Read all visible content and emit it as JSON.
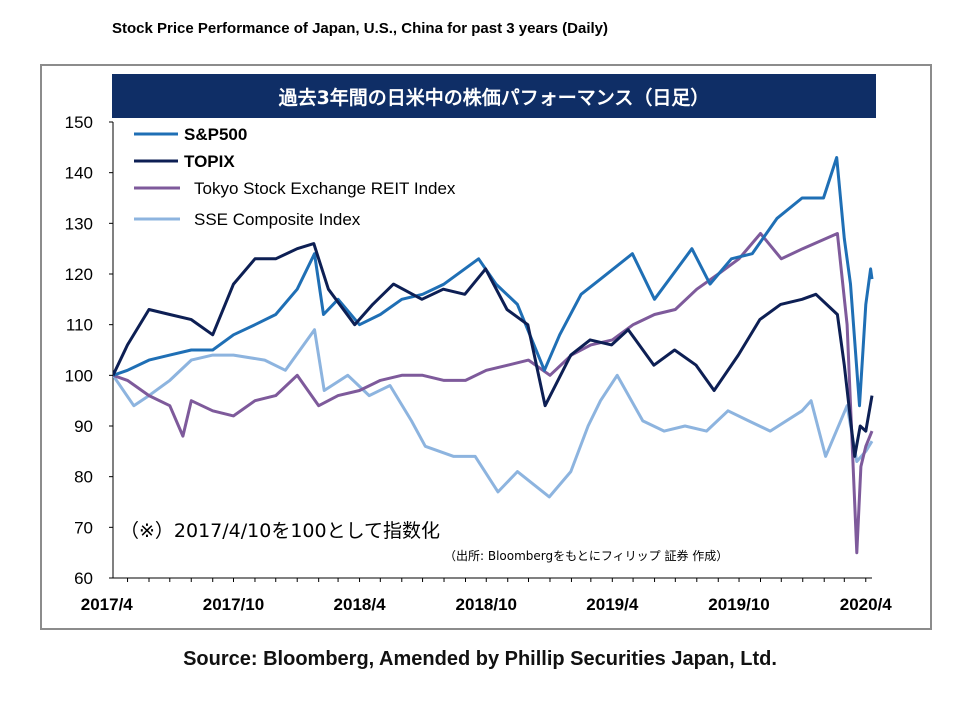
{
  "header": {
    "title": "Stock Price Performance of Japan, U.S., China for past 3 years (Daily)"
  },
  "footer": {
    "source": "Source: Bloomberg, Amended by Phillip Securities Japan, Ltd."
  },
  "chart_data": {
    "type": "line",
    "title": "過去3年間の日米中の株価パフォーマンス（日足）",
    "xlabel": "",
    "ylabel": "",
    "ylim": [
      60,
      150
    ],
    "yticks": [
      60,
      70,
      80,
      90,
      100,
      110,
      120,
      130,
      140,
      150
    ],
    "xlim": [
      "2017-04-10",
      "2020-04-10"
    ],
    "xtick_labels": [
      "2017/4",
      "2017/10",
      "2018/4",
      "2018/10",
      "2019/4",
      "2019/10",
      "2020/4"
    ],
    "xtick_dates": [
      "2017-04-01",
      "2017-10-01",
      "2018-04-01",
      "2018-10-01",
      "2019-04-01",
      "2019-10-01",
      "2020-04-01"
    ],
    "legend_position": "top-left",
    "grid": false,
    "annotations": {
      "note": "（※）2017/4/10を100として指数化",
      "source_note": "（出所: Bloombergをもとにフィリップ 証券 作成）"
    },
    "series": [
      {
        "name": "S&P500",
        "color": "#1f6fb5",
        "points": [
          [
            "2017-04-10",
            100
          ],
          [
            "2017-05-01",
            101
          ],
          [
            "2017-06-01",
            103
          ],
          [
            "2017-07-01",
            104
          ],
          [
            "2017-08-01",
            105
          ],
          [
            "2017-09-01",
            105
          ],
          [
            "2017-10-01",
            108
          ],
          [
            "2017-11-01",
            110
          ],
          [
            "2017-12-01",
            112
          ],
          [
            "2018-01-01",
            117
          ],
          [
            "2018-01-26",
            124
          ],
          [
            "2018-02-08",
            112
          ],
          [
            "2018-03-01",
            115
          ],
          [
            "2018-04-01",
            110
          ],
          [
            "2018-05-01",
            112
          ],
          [
            "2018-06-01",
            115
          ],
          [
            "2018-07-01",
            116
          ],
          [
            "2018-08-01",
            118
          ],
          [
            "2018-09-20",
            123
          ],
          [
            "2018-10-15",
            118
          ],
          [
            "2018-11-15",
            114
          ],
          [
            "2018-12-24",
            101
          ],
          [
            "2019-01-15",
            108
          ],
          [
            "2019-02-15",
            116
          ],
          [
            "2019-03-15",
            119
          ],
          [
            "2019-04-30",
            124
          ],
          [
            "2019-06-01",
            115
          ],
          [
            "2019-07-25",
            125
          ],
          [
            "2019-08-20",
            118
          ],
          [
            "2019-09-20",
            123
          ],
          [
            "2019-10-20",
            124
          ],
          [
            "2019-11-25",
            131
          ],
          [
            "2019-12-31",
            135
          ],
          [
            "2020-01-31",
            135
          ],
          [
            "2020-02-19",
            143
          ],
          [
            "2020-03-01",
            127
          ],
          [
            "2020-03-10",
            118
          ],
          [
            "2020-03-23",
            94
          ],
          [
            "2020-03-28",
            105
          ],
          [
            "2020-04-01",
            114
          ],
          [
            "2020-04-08",
            121
          ],
          [
            "2020-04-10",
            119
          ]
        ]
      },
      {
        "name": "TOPIX",
        "color": "#0d1f54",
        "points": [
          [
            "2017-04-10",
            100
          ],
          [
            "2017-05-01",
            106
          ],
          [
            "2017-06-01",
            113
          ],
          [
            "2017-07-01",
            112
          ],
          [
            "2017-08-01",
            111
          ],
          [
            "2017-09-01",
            108
          ],
          [
            "2017-10-01",
            118
          ],
          [
            "2017-11-01",
            123
          ],
          [
            "2017-12-01",
            123
          ],
          [
            "2018-01-01",
            125
          ],
          [
            "2018-01-25",
            126
          ],
          [
            "2018-02-15",
            117
          ],
          [
            "2018-03-25",
            110
          ],
          [
            "2018-04-20",
            114
          ],
          [
            "2018-05-20",
            118
          ],
          [
            "2018-06-30",
            115
          ],
          [
            "2018-07-31",
            117
          ],
          [
            "2018-08-31",
            116
          ],
          [
            "2018-09-30",
            121
          ],
          [
            "2018-10-31",
            113
          ],
          [
            "2018-11-30",
            110
          ],
          [
            "2018-12-25",
            94
          ],
          [
            "2019-01-31",
            104
          ],
          [
            "2019-02-28",
            107
          ],
          [
            "2019-03-31",
            106
          ],
          [
            "2019-04-24",
            109
          ],
          [
            "2019-05-31",
            102
          ],
          [
            "2019-06-30",
            105
          ],
          [
            "2019-07-31",
            102
          ],
          [
            "2019-08-26",
            97
          ],
          [
            "2019-09-30",
            104
          ],
          [
            "2019-10-31",
            111
          ],
          [
            "2019-11-30",
            114
          ],
          [
            "2019-12-31",
            115
          ],
          [
            "2020-01-20",
            116
          ],
          [
            "2020-02-20",
            112
          ],
          [
            "2020-03-01",
            102
          ],
          [
            "2020-03-16",
            84
          ],
          [
            "2020-03-24",
            90
          ],
          [
            "2020-04-01",
            89
          ],
          [
            "2020-04-10",
            96
          ]
        ]
      },
      {
        "name": "Tokyo Stock Exchange REIT Index",
        "color": "#7e5a9b",
        "points": [
          [
            "2017-04-10",
            100
          ],
          [
            "2017-05-01",
            99
          ],
          [
            "2017-06-01",
            96
          ],
          [
            "2017-07-01",
            94
          ],
          [
            "2017-07-20",
            88
          ],
          [
            "2017-08-01",
            95
          ],
          [
            "2017-09-01",
            93
          ],
          [
            "2017-10-01",
            92
          ],
          [
            "2017-11-01",
            95
          ],
          [
            "2017-12-01",
            96
          ],
          [
            "2018-01-01",
            100
          ],
          [
            "2018-02-01",
            94
          ],
          [
            "2018-03-01",
            96
          ],
          [
            "2018-04-01",
            97
          ],
          [
            "2018-05-01",
            99
          ],
          [
            "2018-06-01",
            100
          ],
          [
            "2018-07-01",
            100
          ],
          [
            "2018-08-01",
            99
          ],
          [
            "2018-09-01",
            99
          ],
          [
            "2018-10-01",
            101
          ],
          [
            "2018-11-01",
            102
          ],
          [
            "2018-12-01",
            103
          ],
          [
            "2019-01-01",
            100
          ],
          [
            "2019-02-01",
            104
          ],
          [
            "2019-03-01",
            106
          ],
          [
            "2019-04-01",
            107
          ],
          [
            "2019-05-01",
            110
          ],
          [
            "2019-06-01",
            112
          ],
          [
            "2019-07-01",
            113
          ],
          [
            "2019-08-01",
            117
          ],
          [
            "2019-09-01",
            120
          ],
          [
            "2019-10-01",
            123
          ],
          [
            "2019-11-01",
            128
          ],
          [
            "2019-12-01",
            123
          ],
          [
            "2020-01-01",
            125
          ],
          [
            "2020-02-20",
            128
          ],
          [
            "2020-03-05",
            110
          ],
          [
            "2020-03-19",
            65
          ],
          [
            "2020-03-25",
            82
          ],
          [
            "2020-04-01",
            86
          ],
          [
            "2020-04-10",
            89
          ]
        ]
      },
      {
        "name": "SSE Composite Index",
        "color": "#8db4df",
        "points": [
          [
            "2017-04-10",
            100
          ],
          [
            "2017-05-10",
            94
          ],
          [
            "2017-06-01",
            96
          ],
          [
            "2017-07-01",
            99
          ],
          [
            "2017-08-01",
            103
          ],
          [
            "2017-09-01",
            104
          ],
          [
            "2017-10-01",
            104
          ],
          [
            "2017-11-15",
            103
          ],
          [
            "2017-12-15",
            101
          ],
          [
            "2018-01-26",
            109
          ],
          [
            "2018-02-09",
            97
          ],
          [
            "2018-03-15",
            100
          ],
          [
            "2018-04-15",
            96
          ],
          [
            "2018-05-15",
            98
          ],
          [
            "2018-06-15",
            91
          ],
          [
            "2018-07-05",
            86
          ],
          [
            "2018-08-15",
            84
          ],
          [
            "2018-09-15",
            84
          ],
          [
            "2018-10-18",
            77
          ],
          [
            "2018-11-15",
            81
          ],
          [
            "2018-12-31",
            76
          ],
          [
            "2019-01-31",
            81
          ],
          [
            "2019-02-25",
            90
          ],
          [
            "2019-03-15",
            95
          ],
          [
            "2019-04-08",
            100
          ],
          [
            "2019-05-15",
            91
          ],
          [
            "2019-06-15",
            89
          ],
          [
            "2019-07-15",
            90
          ],
          [
            "2019-08-15",
            89
          ],
          [
            "2019-09-15",
            93
          ],
          [
            "2019-10-15",
            91
          ],
          [
            "2019-11-15",
            89
          ],
          [
            "2019-12-31",
            93
          ],
          [
            "2020-01-13",
            95
          ],
          [
            "2020-02-03",
            84
          ],
          [
            "2020-03-05",
            94
          ],
          [
            "2020-03-19",
            83
          ],
          [
            "2020-04-01",
            85
          ],
          [
            "2020-04-10",
            87
          ]
        ]
      }
    ]
  }
}
